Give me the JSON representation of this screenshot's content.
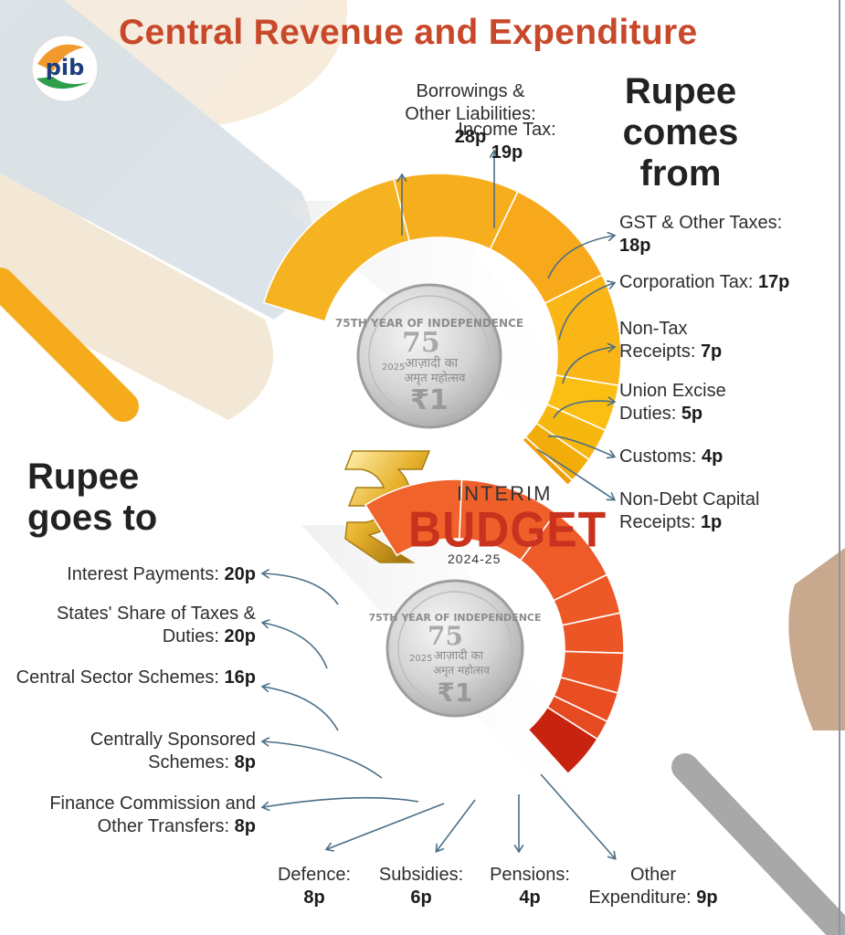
{
  "title": "Central Revenue and Expenditure",
  "logo": {
    "text": "pib",
    "icon": "pib-logo-icon"
  },
  "budget_badge": {
    "interim": "INTERIM",
    "word": "BUDGET",
    "year": "2024-25",
    "icon": "rupee-symbol-icon"
  },
  "chart_data": [
    {
      "type": "donut",
      "title": "Rupee comes from",
      "unit": "p",
      "slices": [
        {
          "label": "Borrowings & Other Liabilities:",
          "value": 28
        },
        {
          "label": "Income Tax:",
          "value": 19
        },
        {
          "label": "GST & Other Taxes:",
          "value": 18
        },
        {
          "label": "Corporation Tax:",
          "value": 17
        },
        {
          "label": "Non-Tax Receipts:",
          "value": 7
        },
        {
          "label": "Union Excise Duties:",
          "value": 5
        },
        {
          "label": "Customs:",
          "value": 4
        },
        {
          "label": "Non-Debt Capital Receipts:",
          "value": 1
        }
      ],
      "colors": [
        "#f6b321",
        "#f7ae1e",
        "#f8a91b",
        "#fab517",
        "#fbbf14",
        "#f6b80f",
        "#f3ad0b",
        "#ee9f08"
      ]
    },
    {
      "type": "donut",
      "title": "Rupee goes to",
      "unit": "p",
      "slices": [
        {
          "label": "Interest Payments:",
          "value": 20
        },
        {
          "label": "States' Share of Taxes & Duties:",
          "value": 20
        },
        {
          "label": "Central Sector Schemes:",
          "value": 16
        },
        {
          "label": "Centrally Sponsored Schemes:",
          "value": 8
        },
        {
          "label": "Finance Commission and Other Transfers:",
          "value": 8
        },
        {
          "label": "Defence:",
          "value": 8
        },
        {
          "label": "Subsidies:",
          "value": 6
        },
        {
          "label": "Pensions:",
          "value": 4
        },
        {
          "label": "Other Expenditure:",
          "value": 9
        }
      ],
      "colors": [
        "#f0632b",
        "#ef5f2a",
        "#ee5b28",
        "#ed5827",
        "#ec5526",
        "#eb5224",
        "#e94e22",
        "#e64a20",
        "#c7230e"
      ]
    }
  ],
  "coin": {
    "line1": "75TH YEAR OF INDEPENDENCE",
    "line2": "आज़ादी का",
    "line3": "अमृत महोत्सव",
    "year": "2025",
    "denomination": "₹1"
  }
}
